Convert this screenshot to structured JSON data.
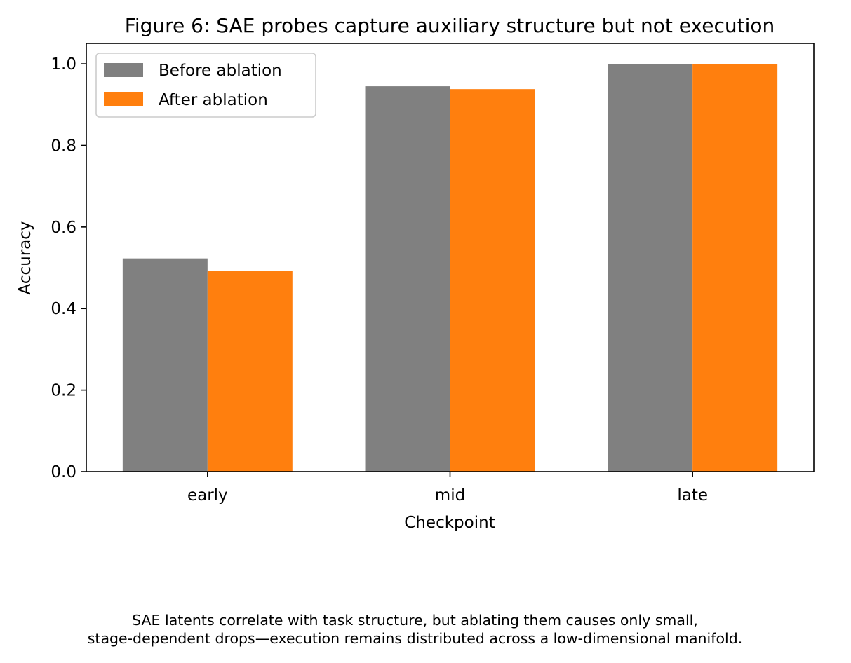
{
  "chart_data": {
    "type": "bar",
    "title": "Figure 6: SAE probes capture auxiliary structure but not execution",
    "xlabel": "Checkpoint",
    "ylabel": "Accuracy",
    "categories": [
      "early",
      "mid",
      "late"
    ],
    "series": [
      {
        "name": "Before ablation",
        "values": [
          0.523,
          0.945,
          1.0
        ],
        "color": "#808080"
      },
      {
        "name": "After ablation",
        "values": [
          0.493,
          0.938,
          1.0
        ],
        "color": "#ff7f0e"
      }
    ],
    "ylim": [
      0,
      1.05
    ],
    "yticks": [
      "0.0",
      "0.2",
      "0.4",
      "0.6",
      "0.8",
      "1.0"
    ],
    "legend_position": "top-left",
    "grid": false
  },
  "caption": {
    "line1": "SAE latents correlate with task structure, but ablating them causes only small,",
    "line2": "stage-dependent drops—execution remains distributed across a low-dimensional manifold."
  }
}
